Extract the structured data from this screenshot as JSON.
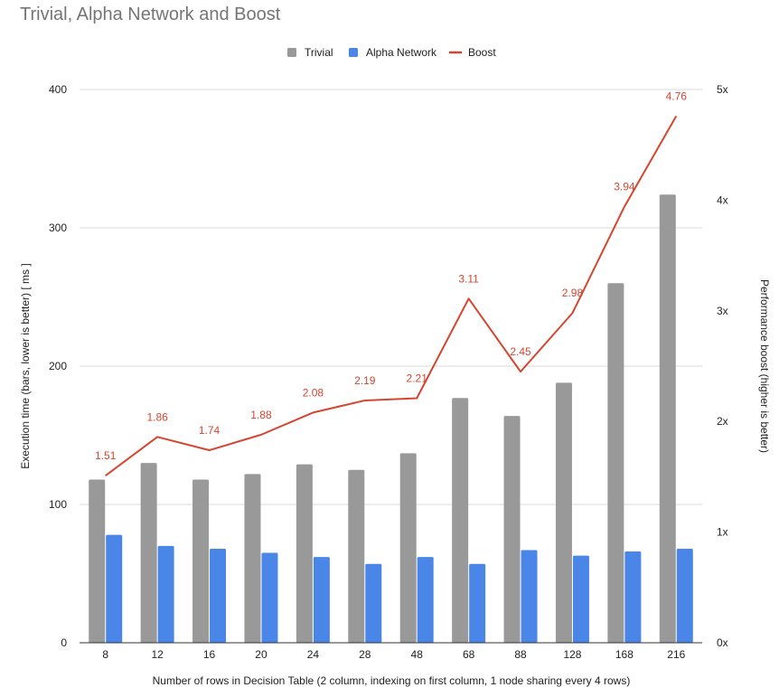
{
  "chart_data": {
    "type": "bar",
    "title": "Trivial, Alpha Network and Boost",
    "xlabel": "Number of rows in Decision Table (2 column, indexing on first column, 1 node sharing every 4 rows)",
    "ylabel": "Execution time (bars, lower is better) [ ms ]",
    "y2label": "Performance boost (higher is better)",
    "categories": [
      "8",
      "12",
      "16",
      "20",
      "24",
      "28",
      "48",
      "68",
      "88",
      "128",
      "168",
      "216"
    ],
    "ylim": [
      0,
      400
    ],
    "yticks": [
      "0",
      "100",
      "200",
      "300",
      "400"
    ],
    "y2lim": [
      0,
      5
    ],
    "y2ticks": [
      "0x",
      "1x",
      "2x",
      "3x",
      "4x",
      "5x"
    ],
    "grid": true,
    "legend_position": "top-center",
    "series": [
      {
        "name": "Trivial",
        "type": "bar",
        "color": "#999999",
        "values": [
          118,
          130,
          118,
          122,
          129,
          125,
          137,
          177,
          164,
          188,
          260,
          324
        ]
      },
      {
        "name": "Alpha Network",
        "type": "bar",
        "color": "#4a86e8",
        "values": [
          78,
          70,
          68,
          65,
          62,
          57,
          62,
          57,
          67,
          63,
          66,
          68
        ]
      },
      {
        "name": "Boost",
        "type": "line",
        "axis": "right",
        "color": "#d6452f",
        "values": [
          1.51,
          1.86,
          1.74,
          1.88,
          2.08,
          2.19,
          2.21,
          3.11,
          2.45,
          2.98,
          3.94,
          4.76
        ],
        "labels": [
          "1.51",
          "1.86",
          "1.74",
          "1.88",
          "2.08",
          "2.19",
          "2.21",
          "3.11",
          "2.45",
          "2.98",
          "3.94",
          "4.76"
        ]
      }
    ]
  }
}
